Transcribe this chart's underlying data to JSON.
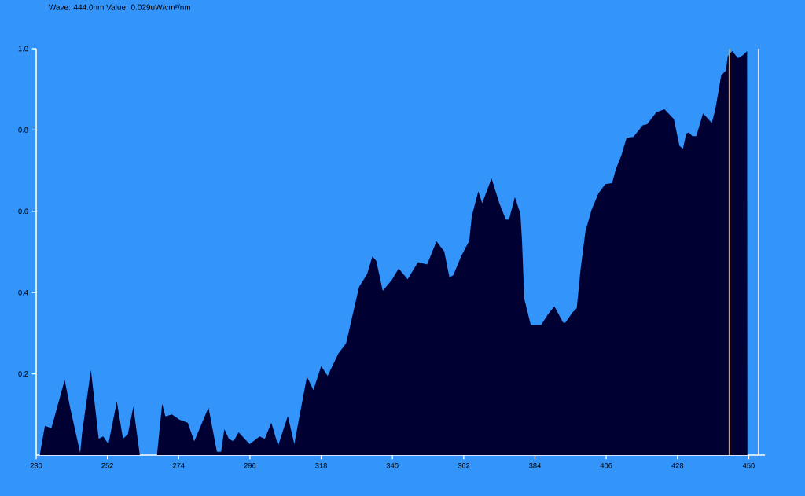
{
  "chart_data": {
    "type": "area",
    "title": "Wave: 444.0nm Value: 0.029uW/cm²/nm",
    "x": [
      231.1,
      232.7,
      234.7,
      238.8,
      240.4,
      243.6,
      244.2,
      246.9,
      249.3,
      250.7,
      252.3,
      254.9,
      256.8,
      258.3,
      260.0,
      262.0,
      267.3,
      268.9,
      269.9,
      271.9,
      274.3,
      276.8,
      278.8,
      283.2,
      285.8,
      287.1,
      288.1,
      289.5,
      290.9,
      292.5,
      295.9,
      299.0,
      300.6,
      302.6,
      304.7,
      307.7,
      309.7,
      313.6,
      315.6,
      318.0,
      320.0,
      323.3,
      325.7,
      329.7,
      332.2,
      333.8,
      335.0,
      337.0,
      339.8,
      341.9,
      344.7,
      347.9,
      350.7,
      353.6,
      356.0,
      357.6,
      358.8,
      361.3,
      363.7,
      364.5,
      366.5,
      367.7,
      370.6,
      373.0,
      375.0,
      376.0,
      377.8,
      379.5,
      380.0,
      380.7,
      382.7,
      385.9,
      388.0,
      390.0,
      392.7,
      393.4,
      395.6,
      396.9,
      398.1,
      399.6,
      401.5,
      403.6,
      405.7,
      407.8,
      409.0,
      410.7,
      412.3,
      414.4,
      417.3,
      418.6,
      421.5,
      424.0,
      426.9,
      428.6,
      429.7,
      430.7,
      431.5,
      432.6,
      433.8,
      435.9,
      438.6,
      439.7,
      441.5,
      443.0,
      443.5,
      444.9,
      446.7,
      448.2,
      449.5,
      449.6
    ],
    "series": [
      {
        "color": "#000033",
        "values": [
          0,
          0.072,
          0.066,
          0.185,
          0.12,
          0.005,
          0.056,
          0.21,
          0.04,
          0.046,
          0.027,
          0.132,
          0.04,
          0.051,
          0.119,
          0,
          0,
          0.126,
          0.095,
          0.1,
          0.087,
          0.08,
          0.034,
          0.117,
          0.008,
          0.008,
          0.064,
          0.04,
          0.034,
          0.056,
          0.027,
          0.046,
          0.04,
          0.08,
          0.023,
          0.096,
          0.027,
          0.193,
          0.16,
          0.219,
          0.195,
          0.25,
          0.275,
          0.414,
          0.446,
          0.489,
          0.478,
          0.404,
          0.431,
          0.459,
          0.433,
          0.475,
          0.469,
          0.526,
          0.501,
          0.437,
          0.443,
          0.491,
          0.527,
          0.588,
          0.649,
          0.62,
          0.681,
          0.62,
          0.58,
          0.58,
          0.635,
          0.594,
          0.527,
          0.385,
          0.32,
          0.32,
          0.346,
          0.366,
          0.326,
          0.326,
          0.351,
          0.361,
          0.458,
          0.551,
          0.604,
          0.644,
          0.667,
          0.669,
          0.704,
          0.738,
          0.781,
          0.783,
          0.812,
          0.814,
          0.844,
          0.851,
          0.827,
          0.761,
          0.754,
          0.791,
          0.794,
          0.785,
          0.785,
          0.841,
          0.817,
          0.851,
          0.934,
          0.947,
          0.981,
          0.994,
          0.977,
          0.984,
          0.994,
          0
        ]
      }
    ],
    "xlim": [
      230,
      455
    ],
    "ylim": [
      0,
      1.0
    ],
    "xticks": [
      230,
      252,
      274,
      296,
      318,
      340,
      362,
      384,
      406,
      428,
      450
    ],
    "yticks": [
      0.2,
      0.4,
      0.6,
      0.8,
      {
        "value": 1.0,
        "label": "1.0"
      }
    ],
    "ref_lines": [
      {
        "axis": "x",
        "value": 444,
        "color": "#e8a020"
      },
      {
        "axis": "x",
        "value": 453,
        "color": "#e0e0e0"
      }
    ],
    "grid": false
  }
}
